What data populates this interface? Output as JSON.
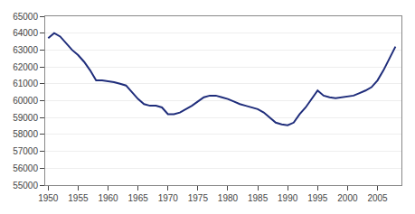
{
  "chart_data": {
    "type": "line",
    "x": [
      1950,
      1951,
      1952,
      1953,
      1954,
      1955,
      1956,
      1957,
      1958,
      1959,
      1960,
      1961,
      1962,
      1963,
      1964,
      1965,
      1966,
      1967,
      1968,
      1969,
      1970,
      1971,
      1972,
      1973,
      1974,
      1975,
      1976,
      1977,
      1978,
      1979,
      1980,
      1981,
      1982,
      1983,
      1984,
      1985,
      1986,
      1987,
      1988,
      1989,
      1990,
      1991,
      1992,
      1993,
      1994,
      1995,
      1996,
      1997,
      1998,
      1999,
      2000,
      2001,
      2002,
      2003,
      2004,
      2005,
      2006,
      2007,
      2008
    ],
    "values": [
      63700,
      64000,
      63800,
      63400,
      63000,
      62700,
      62300,
      61800,
      61200,
      61200,
      61150,
      61100,
      61000,
      60900,
      60500,
      60100,
      59800,
      59700,
      59700,
      59600,
      59200,
      59200,
      59300,
      59500,
      59700,
      59950,
      60200,
      60300,
      60300,
      60200,
      60100,
      59950,
      59800,
      59700,
      59600,
      59500,
      59300,
      59000,
      58700,
      58600,
      58550,
      58700,
      59200,
      59600,
      60100,
      60600,
      60300,
      60200,
      60150,
      60200,
      60250,
      60300,
      60450,
      60600,
      60800,
      61200,
      61800,
      62500,
      63200
    ],
    "color": "#1f2d7b",
    "xlim": [
      1949.5,
      2009
    ],
    "xticks": [
      1950,
      1955,
      1960,
      1965,
      1970,
      1975,
      1980,
      1985,
      1990,
      1995,
      2000,
      2005
    ],
    "ylim": [
      55000,
      65000
    ],
    "yticks": [
      55000,
      56000,
      57000,
      58000,
      59000,
      60000,
      61000,
      62000,
      63000,
      64000,
      65000
    ],
    "grid": "y"
  }
}
